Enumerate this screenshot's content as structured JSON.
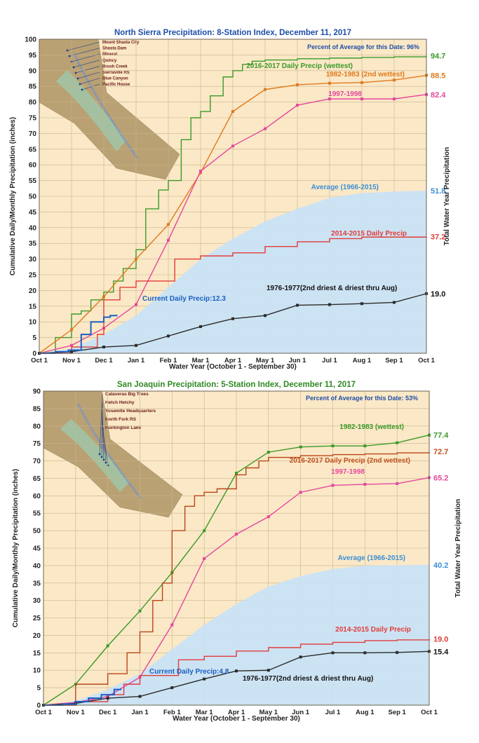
{
  "chart_data": [
    {
      "type": "line",
      "title": "North Sierra Precipitation: 8-Station Index, December 11, 2017",
      "xlabel": "Water Year (October 1 - September 30)",
      "ylabel": "Cumulative Daily/Monthly Precipitation (inches)",
      "ylabel_right": "Total Water Year Precipitation",
      "percent_text": "Percent of Average for this Date: 96%",
      "ylim": [
        0,
        100
      ],
      "y_ticks": [
        0,
        5,
        10,
        15,
        20,
        25,
        30,
        35,
        40,
        45,
        50,
        55,
        60,
        65,
        70,
        75,
        80,
        85,
        90,
        95,
        100
      ],
      "x_ticks": [
        0,
        1,
        2,
        3,
        4,
        5,
        6,
        7,
        8,
        9,
        10,
        11,
        12
      ],
      "categories": [
        "Oct 1",
        "Nov 1",
        "Dec 1",
        "Jan 1",
        "Feb 1",
        "Mar 1",
        "Apr 1",
        "May 1",
        "Jun 1",
        "Jul 1",
        "Aug 1",
        "Sep 1",
        "Oct 1"
      ],
      "grid": true,
      "map_labels": [
        "Mount Shasta City",
        "Shasta Dam",
        "Mineral",
        "Quincy",
        "Brush Creek",
        "Sierraville RS",
        "Blue Canyon",
        "Pacific House"
      ],
      "series": [
        {
          "name": "Average (1966-2015)",
          "style": "area",
          "color": "#c8e2f6",
          "x": [
            0,
            1,
            2,
            3,
            4,
            5,
            6,
            7,
            8,
            9,
            10,
            11,
            12
          ],
          "y": [
            0,
            1.5,
            6,
            12,
            21,
            30,
            36.5,
            42,
            46,
            49.5,
            51,
            51.5,
            51.8
          ],
          "end_label": "51.8",
          "label_color": "#3b8fd6"
        },
        {
          "name": "2016-2017 Daily Precip (wettest)",
          "style": "step",
          "color": "#3a9a2a",
          "x": [
            0,
            0.5,
            1,
            1.3,
            1.6,
            2,
            2.3,
            2.6,
            3,
            3.3,
            3.7,
            4,
            4.4,
            4.7,
            5,
            5.3,
            5.7,
            6,
            6.3,
            6.6,
            7,
            8,
            9,
            10,
            11,
            12
          ],
          "y": [
            0,
            5,
            12.5,
            13.5,
            17,
            19.5,
            23,
            27,
            33,
            46,
            52,
            55,
            68,
            75,
            77,
            82,
            88,
            90,
            92,
            93,
            93.4,
            93.8,
            94,
            94.2,
            94.4,
            94.7
          ],
          "end_label": "94.7",
          "label_color": "#3a9a2a"
        },
        {
          "name": "1982-1983 (2nd wettest)",
          "style": "line",
          "color": "#e07a1e",
          "markers": true,
          "x": [
            0,
            1,
            2,
            3,
            4,
            5,
            6,
            7,
            8,
            9,
            10,
            11,
            12
          ],
          "y": [
            0,
            7.5,
            18,
            30,
            41,
            57.5,
            77,
            84,
            85.5,
            86,
            86.2,
            87,
            88.5
          ],
          "end_label": "88.5",
          "label_color": "#e07a1e"
        },
        {
          "name": "1997-1998",
          "style": "line",
          "color": "#e4479e",
          "markers": true,
          "x": [
            0,
            1,
            2,
            3,
            4,
            5,
            6,
            7,
            8,
            9,
            10,
            11,
            12
          ],
          "y": [
            0,
            2.5,
            8,
            15.5,
            36,
            58,
            66,
            71.5,
            79,
            81,
            81,
            81,
            82.4
          ],
          "end_label": "82.4",
          "label_color": "#e4479e"
        },
        {
          "name": "2014-2015 Daily Precip",
          "style": "step",
          "color": "#e23b3b",
          "x": [
            0,
            1,
            1.8,
            2,
            2.5,
            3,
            4,
            4.2,
            5,
            6,
            7,
            8,
            9,
            10,
            11,
            12
          ],
          "y": [
            0,
            2,
            6,
            17,
            21,
            23,
            23,
            30,
            31,
            32,
            34,
            35.5,
            36.5,
            37,
            37,
            37.2
          ],
          "end_label": "37.2",
          "label_color": "#e23b3b"
        },
        {
          "name": "1976-1977(2nd driest & driest thru Aug)",
          "style": "line",
          "color": "#2b2b2b",
          "markers": true,
          "x": [
            0,
            1,
            2,
            3,
            4,
            5,
            6,
            7,
            8,
            9,
            10,
            11,
            12
          ],
          "y": [
            0,
            0.5,
            2,
            2.5,
            5.5,
            8.5,
            11,
            12,
            15.3,
            15.5,
            15.8,
            16.2,
            19.0
          ],
          "end_label": "19.0",
          "label_color": "#111111"
        },
        {
          "name": "Current Daily Precip:12.3",
          "style": "step",
          "color": "#1b5fc4",
          "x": [
            0,
            0.5,
            0.9,
            1.3,
            1.6,
            2,
            2.2,
            2.4
          ],
          "y": [
            0,
            0.5,
            1,
            6,
            10,
            11.5,
            12,
            12.3
          ],
          "end_label": "",
          "label_color": "#1b5fc4"
        }
      ]
    },
    {
      "type": "line",
      "title": "San Joaquin Precipitation: 5-Station Index, December 11, 2017",
      "xlabel": "Water Year (October 1 - September 30)",
      "ylabel": "Cumulative Daily/Monthly Precipitation (inches)",
      "ylabel_right": "Total Water Year Precipitation",
      "percent_text": "Percent of Average for this Date: 53%",
      "ylim": [
        0,
        90
      ],
      "y_ticks": [
        0,
        5,
        10,
        15,
        20,
        25,
        30,
        35,
        40,
        45,
        50,
        55,
        60,
        65,
        70,
        75,
        80,
        85,
        90
      ],
      "x_ticks": [
        0,
        1,
        2,
        3,
        4,
        5,
        6,
        7,
        8,
        9,
        10,
        11,
        12
      ],
      "categories": [
        "Oct 1",
        "Nov 1",
        "Dec 1",
        "Jan 1",
        "Feb 1",
        "Mar 1",
        "Apr 1",
        "May 1",
        "Jun 1",
        "Jul 1",
        "Aug 1",
        "Sep 1",
        "Oct 1"
      ],
      "grid": true,
      "map_labels": [
        "Calaveras Big Trees",
        "Hetch Hetchy",
        "Yosemite Headquarters",
        "North Fork RS",
        "Huntington Lake"
      ],
      "series": [
        {
          "name": "Average (1966-2015)",
          "style": "area",
          "color": "#c8e2f6",
          "x": [
            0,
            1,
            2,
            3,
            4,
            5,
            6,
            7,
            8,
            9,
            10,
            11,
            12
          ],
          "y": [
            0,
            1.2,
            4.5,
            9,
            16,
            23,
            29,
            34,
            37,
            39,
            40,
            40.1,
            40.2
          ],
          "end_label": "40.2",
          "label_color": "#3b8fd6"
        },
        {
          "name": "1982-1983 (wettest)",
          "style": "line",
          "color": "#3a9a2a",
          "markers": true,
          "x": [
            0,
            1,
            2,
            3,
            4,
            5,
            6,
            7,
            8,
            9,
            10,
            11,
            12
          ],
          "y": [
            0,
            6,
            17,
            27,
            38,
            50,
            66.5,
            72.5,
            74,
            74.3,
            74.3,
            75.2,
            77.4
          ],
          "end_label": "77.4",
          "label_color": "#3a9a2a"
        },
        {
          "name": "2016-2017 Daily Precip (2nd wettest)",
          "style": "step",
          "color": "#b8461a",
          "x": [
            0,
            1,
            2,
            2.6,
            3,
            3.4,
            3.7,
            4,
            4.4,
            4.7,
            5,
            5.4,
            6,
            6.3,
            6.7,
            7,
            8,
            9,
            10,
            11,
            12
          ],
          "y": [
            0,
            6,
            9,
            15,
            21,
            30,
            35,
            50,
            57,
            60,
            61,
            62,
            66,
            68,
            70,
            71,
            71.5,
            71.8,
            72,
            72.3,
            72.7
          ],
          "end_label": "72.7",
          "label_color": "#c0501f"
        },
        {
          "name": "1997-1998",
          "style": "line",
          "color": "#e4479e",
          "markers": true,
          "x": [
            0,
            1,
            2,
            3,
            4,
            5,
            6,
            7,
            8,
            9,
            10,
            11,
            12
          ],
          "y": [
            0,
            0.8,
            2.5,
            8,
            23,
            42,
            49,
            54,
            61,
            63,
            63.3,
            63.5,
            65.2
          ],
          "end_label": "65.2",
          "label_color": "#e4479e"
        },
        {
          "name": "2014-2015 Daily Precip",
          "style": "step",
          "color": "#e23b3b",
          "x": [
            0,
            1,
            2,
            2.5,
            3,
            4,
            4.2,
            5,
            6,
            7,
            8,
            9,
            10,
            11,
            12
          ],
          "y": [
            0,
            1,
            3,
            6,
            8.5,
            8.5,
            13,
            14,
            15.5,
            16.5,
            17.5,
            18,
            18.5,
            18.7,
            19.0
          ],
          "end_label": "19.0",
          "label_color": "#e23b3b"
        },
        {
          "name": "1976-1977(2nd driest & driest thru Aug)",
          "style": "line",
          "color": "#2b2b2b",
          "markers": true,
          "x": [
            0,
            1,
            2,
            3,
            4,
            5,
            6,
            7,
            8,
            9,
            10,
            11,
            12
          ],
          "y": [
            0,
            0.5,
            2,
            2.5,
            5,
            7.5,
            9.8,
            10,
            13.8,
            15,
            15,
            15.1,
            15.4
          ],
          "end_label": "15.4",
          "label_color": "#111111"
        },
        {
          "name": "Current Daily Precip:4.8",
          "style": "step",
          "color": "#1b5fc4",
          "x": [
            0,
            0.6,
            1,
            1.4,
            1.8,
            2.2,
            2.4
          ],
          "y": [
            0,
            0.3,
            1,
            2,
            3,
            4.5,
            4.8
          ],
          "end_label": "",
          "label_color": "#1b5fc4"
        }
      ]
    }
  ]
}
